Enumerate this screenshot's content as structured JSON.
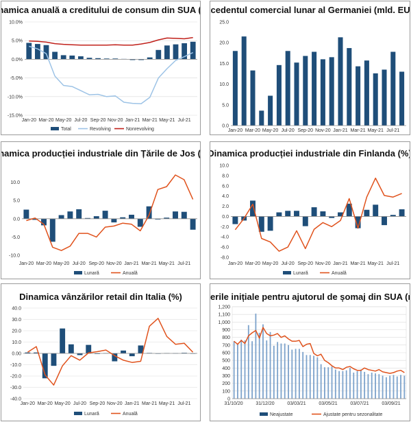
{
  "colors": {
    "navy": "#1f4e79",
    "orange": "#e0521c",
    "lightblue": "#9dc3e6",
    "red": "#c0201a",
    "bluegray": "#7fa4cc",
    "grid": "#d9d9d9"
  },
  "chart_data": [
    {
      "id": "c1",
      "type": "bar+line",
      "title": "Dinamica anuală a creditului de consum din SUA (%)",
      "yticks": [
        "-15.0%",
        "-10.0%",
        "-5.0%",
        "0.0%",
        "5.0%",
        "10.0%"
      ],
      "ylim": [
        -15,
        10
      ],
      "categories": [
        "Jan-20",
        "Feb-20",
        "Mar-20",
        "Apr-20",
        "May-20",
        "Jun-20",
        "Jul-20",
        "Aug-20",
        "Sep-20",
        "Oct-20",
        "Nov-20",
        "Dec-20",
        "Jan-21",
        "Feb-21",
        "Mar-21",
        "Apr-21",
        "May-21",
        "Jun-21",
        "Jul-21",
        "Aug-21"
      ],
      "xlabels": [
        "Jan-20",
        "Mar-20",
        "May-20",
        "Jul-20",
        "Sep-20",
        "Nov-20",
        "Jan-21",
        "Mar-21",
        "May-21",
        "Jul-21"
      ],
      "bars": {
        "name": "Total",
        "values": [
          4.4,
          4.1,
          3.8,
          2.0,
          1.1,
          1.0,
          0.8,
          0.4,
          0.3,
          0.2,
          0.2,
          0.1,
          -0.2,
          -0.2,
          0.5,
          2.5,
          3.7,
          4.0,
          4.3,
          4.7
        ]
      },
      "lines": [
        {
          "name": "Revolving",
          "values": [
            3.5,
            2.8,
            1.5,
            -4.5,
            -7.0,
            -7.3,
            -8.4,
            -9.5,
            -9.4,
            -10.0,
            -9.8,
            -11.5,
            -11.8,
            -11.9,
            -10.2,
            -5.0,
            -2.5,
            -0.3,
            0.7,
            1.8
          ]
        },
        {
          "name": "Nonrevolving",
          "values": [
            4.9,
            4.8,
            4.6,
            4.2,
            4.0,
            3.9,
            3.8,
            3.8,
            3.8,
            3.8,
            3.9,
            3.8,
            3.8,
            4.1,
            4.5,
            5.2,
            5.7,
            5.6,
            5.5,
            5.8
          ]
        }
      ],
      "legend": [
        "Total",
        "Revolving",
        "Nonrevolving"
      ]
    },
    {
      "id": "c2",
      "type": "bar",
      "title": "Excedentul comercial lunar al Germaniei (mld. EUR)",
      "yticks": [
        "0.0",
        "5.0",
        "10.0",
        "15.0",
        "20.0",
        "25.0"
      ],
      "ylim": [
        0,
        25
      ],
      "categories": [
        "Jan-20",
        "Feb-20",
        "Mar-20",
        "Apr-20",
        "May-20",
        "Jun-20",
        "Jul-20",
        "Aug-20",
        "Sep-20",
        "Oct-20",
        "Nov-20",
        "Dec-20",
        "Jan-21",
        "Feb-21",
        "Mar-21",
        "Apr-21",
        "May-21",
        "Jun-21",
        "Jul-21",
        "Aug-21"
      ],
      "xlabels": [
        "Jan-20",
        "Mar-20",
        "May-20",
        "Jul-20",
        "Sep-20",
        "Nov-20",
        "Jan-21",
        "Mar-21",
        "May-21",
        "Jul-21"
      ],
      "values": [
        18.0,
        21.5,
        13.3,
        3.6,
        7.2,
        14.6,
        18.0,
        15.2,
        16.8,
        17.8,
        16.0,
        16.5,
        21.3,
        18.7,
        14.3,
        15.7,
        12.6,
        13.5,
        17.8,
        13.0
      ]
    },
    {
      "id": "c3",
      "type": "bar+line",
      "title": "Dinamica producției industriale din Țările de Jos (%)",
      "yticks": [
        "-10.0",
        "-5.0",
        "0.0",
        "5.0",
        "10.0"
      ],
      "ylim": [
        -10,
        15
      ],
      "categories": [
        "Jan-20",
        "Feb-20",
        "Mar-20",
        "Apr-20",
        "May-20",
        "Jun-20",
        "Jul-20",
        "Aug-20",
        "Sep-20",
        "Oct-20",
        "Nov-20",
        "Dec-20",
        "Jan-21",
        "Feb-21",
        "Mar-21",
        "Apr-21",
        "May-21",
        "Jun-21",
        "Jul-21",
        "Aug-21"
      ],
      "xlabels": [
        "Jan-20",
        "Mar-20",
        "May-20",
        "Jul-20",
        "Sep-20",
        "Nov-20",
        "Jan-21",
        "Mar-21",
        "May-21",
        "Jul-21"
      ],
      "bars": {
        "name": "Lunară",
        "values": [
          2.5,
          -0.3,
          -1.8,
          -6.3,
          1.0,
          2.0,
          2.6,
          0.2,
          0.7,
          2.2,
          -1.0,
          0.4,
          1.1,
          -2.2,
          3.4,
          -0.2,
          0.3,
          2.0,
          1.9,
          -3.0
        ]
      },
      "lines": [
        {
          "name": "Anuală",
          "values": [
            -0.5,
            0.2,
            -1.5,
            -7.8,
            -8.7,
            -7.5,
            -4.0,
            -4.0,
            -5.0,
            -2.3,
            -2.0,
            -1.2,
            -1.5,
            -3.3,
            1.0,
            8.0,
            8.8,
            12.0,
            10.7,
            5.3
          ]
        }
      ],
      "legend": [
        "Lunară",
        "Anuală"
      ]
    },
    {
      "id": "c4",
      "type": "bar+line",
      "title": "Dinamica producției industriale din Finlanda (%)",
      "yticks": [
        "-8.0",
        "-6.0",
        "-4.0",
        "-2.0",
        "0.0",
        "2.0",
        "4.0",
        "6.0",
        "8.0",
        "10.0"
      ],
      "ylim": [
        -8,
        10
      ],
      "categories": [
        "Jan-20",
        "Feb-20",
        "Mar-20",
        "Apr-20",
        "May-20",
        "Jun-20",
        "Jul-20",
        "Aug-20",
        "Sep-20",
        "Oct-20",
        "Nov-20",
        "Dec-20",
        "Jan-21",
        "Feb-21",
        "Mar-21",
        "Apr-21",
        "May-21",
        "Jun-21",
        "Jul-21",
        "Aug-21"
      ],
      "xlabels": [
        "Jan-20",
        "Mar-20",
        "May-20",
        "Jul-20",
        "Sep-20",
        "Nov-20",
        "Jan-21",
        "Mar-21",
        "May-21",
        "Jul-21"
      ],
      "bars": {
        "name": "Lunară",
        "values": [
          -1.5,
          -0.8,
          3.1,
          -3.0,
          -2.8,
          0.8,
          1.1,
          1.1,
          -1.9,
          1.8,
          1.0,
          -0.3,
          0.8,
          2.5,
          -2.3,
          1.3,
          2.3,
          -1.7,
          0.3,
          1.4
        ]
      },
      "lines": [
        {
          "name": "Anuală",
          "values": [
            -2.6,
            -0.4,
            2.4,
            -4.3,
            -5.0,
            -6.8,
            -6.0,
            -2.8,
            -6.3,
            -2.5,
            -1.2,
            -2.0,
            -0.8,
            3.5,
            -2.3,
            3.8,
            7.5,
            4.1,
            3.8,
            4.5
          ]
        }
      ],
      "legend": [
        "Lunară",
        "Anuală"
      ]
    },
    {
      "id": "c5",
      "type": "bar+line",
      "title": "Dinamica vânzărilor retail din Italia (%)",
      "yticks": [
        "-40.0",
        "-30.0",
        "-20.0",
        "-10.0",
        "0.00",
        "10.0",
        "20.0",
        "30.0",
        "40.0"
      ],
      "ylim": [
        -40,
        40
      ],
      "categories": [
        "Jan-20",
        "Feb-20",
        "Mar-20",
        "Apr-20",
        "May-20",
        "Jun-20",
        "Jul-20",
        "Aug-20",
        "Sep-20",
        "Oct-20",
        "Nov-20",
        "Dec-20",
        "Jan-21",
        "Feb-21",
        "Mar-21",
        "Apr-21",
        "May-21",
        "Jun-21",
        "Jul-21",
        "Aug-21"
      ],
      "xlabels": [
        "Jan-20",
        "Mar-20",
        "May-20",
        "Jul-20",
        "Sep-20",
        "Nov-20",
        "Jan-21",
        "Mar-21",
        "May-21",
        "Jul-21"
      ],
      "bars": {
        "name": "Lunară",
        "values": [
          0.8,
          0.8,
          -22.0,
          -11.0,
          22.0,
          8.0,
          -1.5,
          7.5,
          -0.5,
          0.3,
          -7.0,
          2.5,
          -2.5,
          7.0,
          0.4,
          -0.3,
          0.3,
          0.2,
          0.5,
          -0.2
        ]
      },
      "lines": [
        {
          "name": "Anuală",
          "values": [
            1.0,
            6.0,
            -19.0,
            -28.0,
            -11.0,
            -2.0,
            -6.0,
            0.5,
            1.5,
            3.0,
            -2.0,
            -6.0,
            -8.0,
            -7.0,
            24.0,
            31.0,
            15.0,
            8.0,
            9.0,
            1.0
          ]
        }
      ],
      "legend": [
        "Lunară",
        "Anuală"
      ]
    },
    {
      "id": "c6",
      "type": "bar+line",
      "title": "Cererile inițiale pentru ajutorul de șomaj din SUA (mii)",
      "yticks": [
        "0",
        "100",
        "200",
        "300",
        "400",
        "500",
        "600",
        "700",
        "800",
        "900",
        "1,000",
        "1,100",
        "1,200"
      ],
      "ylim": [
        0,
        1200
      ],
      "xlabels": [
        "31/10/20",
        "31/12/20",
        "03/03/21",
        "03/05/21",
        "03/07/21",
        "03/09/21"
      ],
      "bars": {
        "name": "Neajustate",
        "values": [
          750,
          720,
          770,
          760,
          960,
          750,
          1110,
          860,
          970,
          760,
          870,
          690,
          740,
          720,
          720,
          700,
          640,
          650,
          650,
          610,
          570,
          570,
          560,
          540,
          450,
          410,
          410,
          420,
          380,
          360,
          360,
          370,
          400,
          340,
          360,
          380,
          350,
          320,
          340,
          330,
          320,
          300,
          280,
          300,
          310,
          290,
          310,
          300
        ]
      },
      "lines": [
        {
          "name": "Ajustate pentru sezonalitate",
          "values": [
            750,
            710,
            760,
            720,
            820,
            860,
            890,
            790,
            930,
            850,
            820,
            830,
            850,
            800,
            820,
            780,
            750,
            750,
            760,
            680,
            710,
            720,
            590,
            560,
            580,
            500,
            470,
            430,
            400,
            400,
            380,
            410,
            420,
            390,
            370,
            370,
            400,
            380,
            370,
            360,
            380,
            350,
            340,
            330,
            340,
            360,
            370,
            340
          ]
        }
      ],
      "legend": [
        "Neajustate",
        "Ajustate pentru sezonalitate"
      ]
    }
  ]
}
